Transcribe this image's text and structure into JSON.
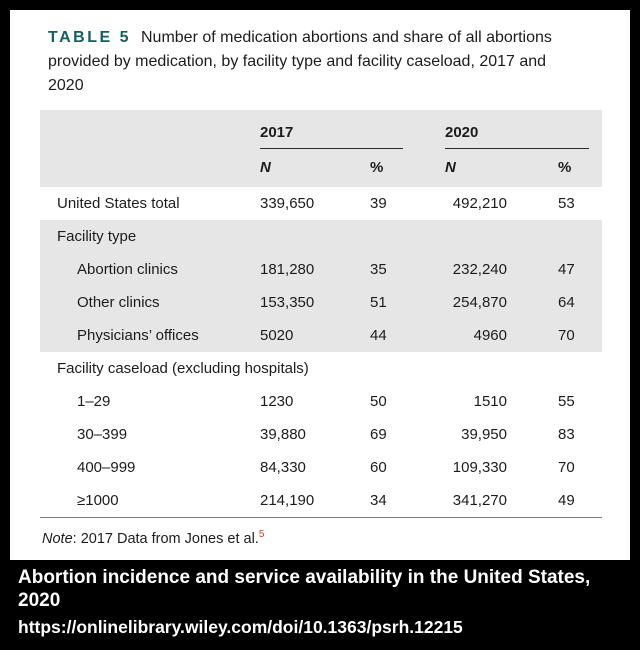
{
  "table": {
    "label": "TABLE 5",
    "caption": "Number of medication abortions and share of all abortions provided by medication, by facility type and facility caseload, 2017 and 2020",
    "col_groups": [
      "2017",
      "2020"
    ],
    "sub_headers": [
      "N",
      "%",
      "N",
      "%"
    ],
    "rows": [
      {
        "label": "United States total",
        "values": [
          "339,650",
          "39",
          "492,210",
          "53"
        ]
      },
      {
        "label": "Facility type",
        "section": true
      },
      {
        "label": "Abortion clinics",
        "values": [
          "181,280",
          "35",
          "232,240",
          "47"
        ]
      },
      {
        "label": "Other clinics",
        "values": [
          "153,350",
          "51",
          "254,870",
          "64"
        ]
      },
      {
        "label": "Physicians’ offices",
        "values": [
          "5020",
          "44",
          "4960",
          "70"
        ]
      },
      {
        "label": "Facility caseload (excluding hospitals)",
        "section": true
      },
      {
        "label": "1–29",
        "values": [
          "1230",
          "50",
          "1510",
          "55"
        ]
      },
      {
        "label": "30–399",
        "values": [
          "39,880",
          "69",
          "39,950",
          "83"
        ]
      },
      {
        "label": "400–999",
        "values": [
          "84,330",
          "60",
          "109,330",
          "70"
        ]
      },
      {
        "label": "≥1000",
        "values": [
          "214,190",
          "34",
          "341,270",
          "49"
        ]
      }
    ],
    "note": {
      "prefix": "Note",
      "text": ": 2017 Data from Jones et al.",
      "ref": "5"
    }
  },
  "footer": {
    "title": "Abortion incidence and service availability in the United States, 2020",
    "url": "https://onlinelibrary.wiley.com/doi/10.1363/psrh.12215"
  },
  "colors": {
    "table_label_accent": "#155f5f",
    "header_shade": "#e6e6e6",
    "reference_link": "#cf4520",
    "footer_background": "#000000",
    "footer_text": "#ffffff"
  }
}
